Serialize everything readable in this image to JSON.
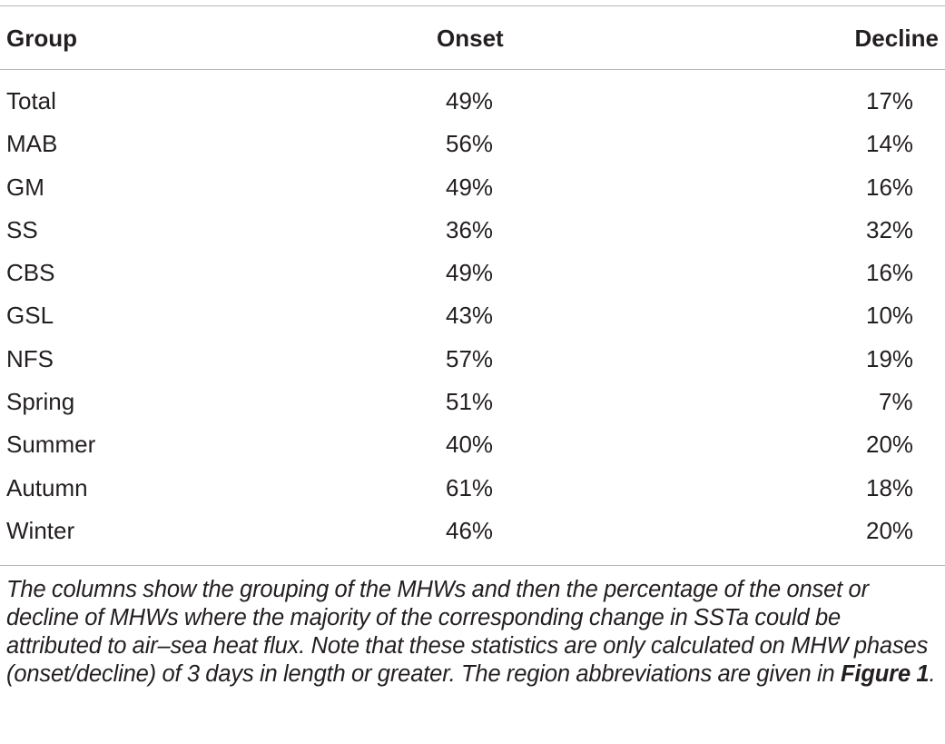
{
  "table": {
    "headers": {
      "group": "Group",
      "onset": "Onset",
      "decline": "Decline"
    },
    "rows": [
      {
        "group": "Total",
        "onset": "49%",
        "decline": "17%"
      },
      {
        "group": "MAB",
        "onset": "56%",
        "decline": "14%"
      },
      {
        "group": "GM",
        "onset": "49%",
        "decline": "16%"
      },
      {
        "group": "SS",
        "onset": "36%",
        "decline": "32%"
      },
      {
        "group": "CBS",
        "onset": "49%",
        "decline": "16%"
      },
      {
        "group": "GSL",
        "onset": "43%",
        "decline": "10%"
      },
      {
        "group": "NFS",
        "onset": "57%",
        "decline": "19%"
      },
      {
        "group": "Spring",
        "onset": "51%",
        "decline": "7%"
      },
      {
        "group": "Summer",
        "onset": "40%",
        "decline": "20%"
      },
      {
        "group": "Autumn",
        "onset": "61%",
        "decline": "18%"
      },
      {
        "group": "Winter",
        "onset": "46%",
        "decline": "20%"
      }
    ]
  },
  "caption": {
    "text": "The columns show the grouping of the MHWs and then the percentage of the onset or decline of MHWs where the majority of the corresponding change in SSTa could be attributed to air–sea heat flux. Note that these statistics are only calculated on MHW phases (onset/decline) of 3 days in length or greater. The region abbreviations are given in ",
    "figure_ref": "Figure 1",
    "end": "."
  }
}
